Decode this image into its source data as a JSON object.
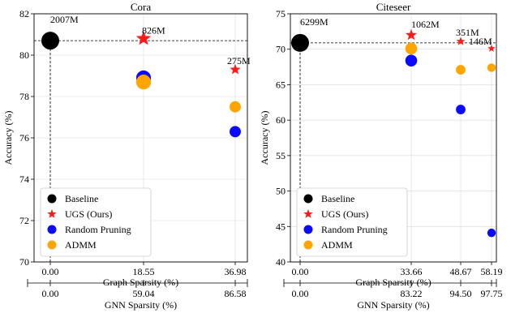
{
  "colors": {
    "baseline": "#000000",
    "ugs": "#ff1a1a",
    "random": "#0a0aff",
    "admm": "#ffa500"
  },
  "legend": [
    {
      "label": "Baseline",
      "marker": "circle",
      "color_key": "baseline"
    },
    {
      "label": "UGS (Ours)",
      "marker": "star",
      "color_key": "ugs"
    },
    {
      "label": "Random Pruning",
      "marker": "circle",
      "color_key": "random"
    },
    {
      "label": "ADMM",
      "marker": "circle",
      "color_key": "admm"
    }
  ],
  "chart_data": [
    {
      "type": "scatter",
      "title": "Cora",
      "xlabel": "Graph Sparsity (%)",
      "ylabel": "Accuracy (%)",
      "secondary_xlabel": "GNN Sparsity (%)",
      "x_ticks": [
        "0.00",
        "18.55",
        "36.98"
      ],
      "secondary_x_ticks": [
        "0.00",
        "59.04",
        "86.58"
      ],
      "ylim": [
        70,
        82
      ],
      "y_ticks": [
        70,
        72,
        74,
        76,
        78,
        80,
        82
      ],
      "grid": true,
      "legend_position": "lower-left",
      "baseline_accuracy": 80.7,
      "series": [
        {
          "name": "Baseline",
          "marker": "circle",
          "points": [
            {
              "x": 0,
              "y": 80.7,
              "size": 2007,
              "label": "2007M"
            }
          ]
        },
        {
          "name": "UGS (Ours)",
          "marker": "star",
          "points": [
            {
              "x": 1,
              "y": 80.8,
              "size": 826,
              "label": "826M"
            },
            {
              "x": 2,
              "y": 79.3,
              "size": 275,
              "label": "275M"
            }
          ]
        },
        {
          "name": "Random Pruning",
          "marker": "circle",
          "points": [
            {
              "x": 1,
              "y": 78.9,
              "size": 826
            },
            {
              "x": 2,
              "y": 76.3,
              "size": 275
            }
          ]
        },
        {
          "name": "ADMM",
          "marker": "circle",
          "points": [
            {
              "x": 1,
              "y": 78.7,
              "size": 826
            },
            {
              "x": 2,
              "y": 77.5,
              "size": 275
            }
          ]
        }
      ]
    },
    {
      "type": "scatter",
      "title": "Citeseer",
      "xlabel": "Graph Sparsity (%)",
      "ylabel": "Accuracy (%)",
      "secondary_xlabel": "GNN Sparsity (%)",
      "x_ticks": [
        "0.00",
        "33.66",
        "48.67",
        "58.19"
      ],
      "secondary_x_ticks": [
        "0.00",
        "83.22",
        "94.50",
        "97.75"
      ],
      "ylim": [
        40,
        75
      ],
      "y_ticks": [
        40,
        45,
        50,
        55,
        60,
        65,
        70,
        75
      ],
      "grid": true,
      "legend_position": "lower-left",
      "baseline_accuracy": 70.9,
      "series": [
        {
          "name": "Baseline",
          "marker": "circle",
          "points": [
            {
              "x": 0,
              "y": 70.9,
              "size": 6299,
              "label": "6299M"
            }
          ]
        },
        {
          "name": "UGS (Ours)",
          "marker": "star",
          "points": [
            {
              "x": 1,
              "y": 72.0,
              "size": 1062,
              "label": "1062M"
            },
            {
              "x": 2,
              "y": 71.1,
              "size": 351,
              "label": "351M"
            },
            {
              "x": 3,
              "y": 70.1,
              "size": 146,
              "label": "146M"
            }
          ]
        },
        {
          "name": "Random Pruning",
          "marker": "circle",
          "points": [
            {
              "x": 1,
              "y": 68.4,
              "size": 1062
            },
            {
              "x": 2,
              "y": 61.5,
              "size": 351
            },
            {
              "x": 3,
              "y": 44.1,
              "size": 146
            }
          ]
        },
        {
          "name": "ADMM",
          "marker": "circle",
          "points": [
            {
              "x": 1,
              "y": 70.1,
              "size": 1062
            },
            {
              "x": 2,
              "y": 67.1,
              "size": 351
            },
            {
              "x": 3,
              "y": 67.4,
              "size": 146
            }
          ]
        }
      ]
    }
  ]
}
